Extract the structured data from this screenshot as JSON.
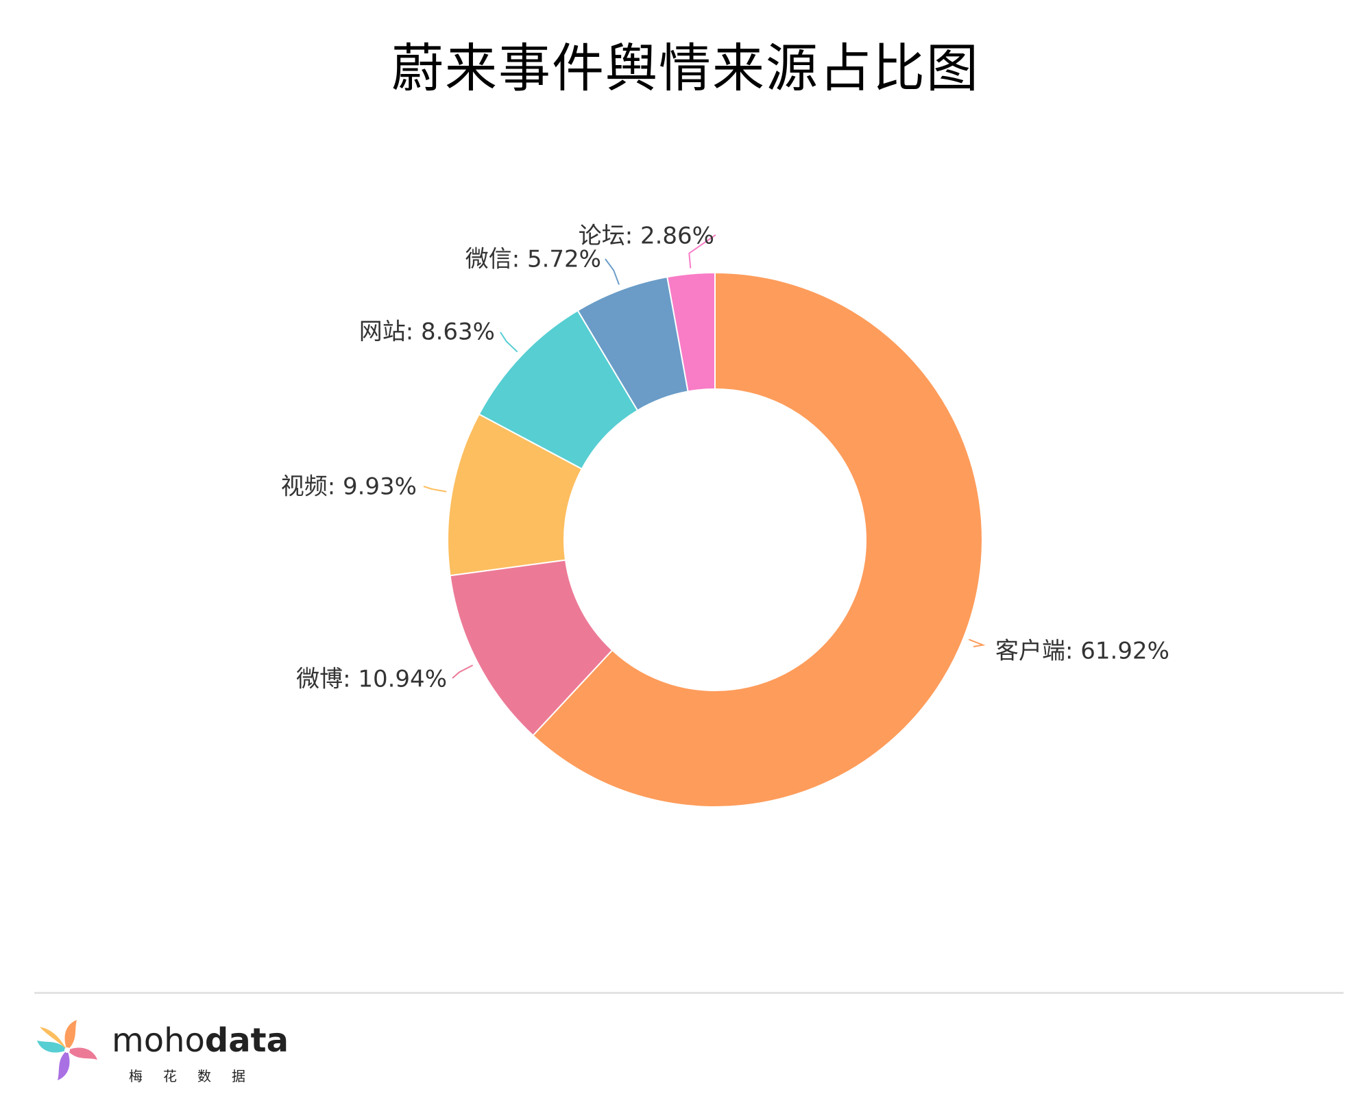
{
  "chart_data": {
    "type": "pie",
    "title": "蔚来事件舆情来源占比图",
    "donut": true,
    "slices": [
      {
        "label": "客户端",
        "value": 61.92,
        "label_text": "客户端: 61.92%",
        "color": "#fe9c5b"
      },
      {
        "label": "微博",
        "value": 10.94,
        "label_text": "微博: 10.94%",
        "color": "#ec7a97"
      },
      {
        "label": "视频",
        "value": 9.93,
        "label_text": "视频: 9.93%",
        "color": "#fdbe5f"
      },
      {
        "label": "网站",
        "value": 8.63,
        "label_text": "网站: 8.63%",
        "color": "#56ced2"
      },
      {
        "label": "微信",
        "value": 5.72,
        "label_text": "微信: 5.72%",
        "color": "#6a9cc7"
      },
      {
        "label": "论坛",
        "value": 2.86,
        "label_text": "论坛: 2.86%",
        "color": "#f97cc6"
      }
    ]
  },
  "brand": {
    "name_light": "moho",
    "name_bold": "data",
    "subtitle": "梅花数据"
  }
}
